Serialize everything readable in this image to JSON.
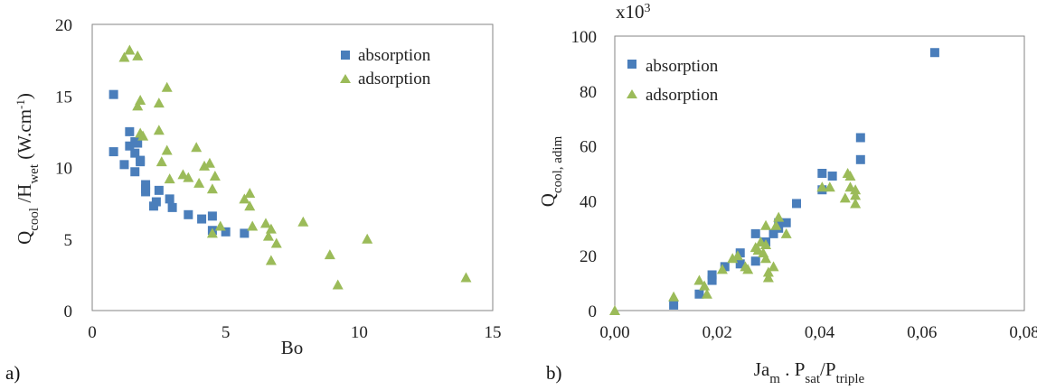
{
  "charts_colors": {
    "absorption": "#4a7ebb",
    "adsorption": "#9bbb59",
    "axis": "#868686"
  },
  "chart_data": [
    {
      "panel_label": "a)",
      "type": "scatter",
      "xlabel": "Bo",
      "ylabel": {
        "main": "Q",
        "sub1": "cool",
        "mid": " /H",
        "sub2": "wet",
        "unit_open": " (W.cm",
        "sup": "-1",
        "unit_close": ")"
      },
      "xlim": [
        0,
        15
      ],
      "ylim": [
        0,
        20
      ],
      "xticks": [
        "0",
        "5",
        "10",
        "15"
      ],
      "yticks": [
        "0",
        "5",
        "10",
        "15",
        "20"
      ],
      "grid": false,
      "legend_position": "top-right",
      "series": [
        {
          "name": "absorption",
          "marker": "square",
          "points": [
            [
              0.8,
              15.1
            ],
            [
              0.8,
              11.1
            ],
            [
              1.2,
              10.2
            ],
            [
              1.4,
              12.5
            ],
            [
              1.4,
              11.5
            ],
            [
              1.6,
              11.8
            ],
            [
              1.6,
              11.0
            ],
            [
              1.6,
              9.7
            ],
            [
              1.7,
              11.7
            ],
            [
              1.8,
              10.4
            ],
            [
              1.8,
              10.5
            ],
            [
              2.0,
              8.8
            ],
            [
              2.0,
              8.5
            ],
            [
              2.0,
              8.3
            ],
            [
              2.3,
              7.3
            ],
            [
              2.4,
              7.6
            ],
            [
              2.5,
              8.4
            ],
            [
              2.9,
              7.8
            ],
            [
              3.0,
              7.2
            ],
            [
              3.6,
              6.7
            ],
            [
              4.1,
              6.4
            ],
            [
              4.5,
              6.6
            ],
            [
              4.5,
              5.6
            ],
            [
              5.0,
              5.5
            ],
            [
              5.7,
              5.4
            ]
          ]
        },
        {
          "name": "adsorption",
          "marker": "triangle",
          "points": [
            [
              1.2,
              17.7
            ],
            [
              1.4,
              18.2
            ],
            [
              1.7,
              17.8
            ],
            [
              1.7,
              14.3
            ],
            [
              1.8,
              14.7
            ],
            [
              1.8,
              12.4
            ],
            [
              1.9,
              12.2
            ],
            [
              2.5,
              14.5
            ],
            [
              2.5,
              12.6
            ],
            [
              2.6,
              10.4
            ],
            [
              2.8,
              15.6
            ],
            [
              2.8,
              11.2
            ],
            [
              2.9,
              9.2
            ],
            [
              3.4,
              9.5
            ],
            [
              3.6,
              9.3
            ],
            [
              3.9,
              11.4
            ],
            [
              4.0,
              8.9
            ],
            [
              4.2,
              10.1
            ],
            [
              4.4,
              10.3
            ],
            [
              4.5,
              8.5
            ],
            [
              4.6,
              9.4
            ],
            [
              4.5,
              5.4
            ],
            [
              4.8,
              5.9
            ],
            [
              5.7,
              7.8
            ],
            [
              5.9,
              8.2
            ],
            [
              5.9,
              7.3
            ],
            [
              6.0,
              5.9
            ],
            [
              6.5,
              6.1
            ],
            [
              6.6,
              5.2
            ],
            [
              6.7,
              5.7
            ],
            [
              6.7,
              3.5
            ],
            [
              6.9,
              4.7
            ],
            [
              7.9,
              6.2
            ],
            [
              8.9,
              3.9
            ],
            [
              9.2,
              1.8
            ],
            [
              10.3,
              5.0
            ],
            [
              14.0,
              2.3
            ]
          ]
        }
      ]
    },
    {
      "panel_label": "b)",
      "type": "scatter",
      "xlabel": {
        "p1": "Ja",
        "s1": "m",
        "p2": " . P",
        "s2": "sat",
        "p3": "/P",
        "s3": "triple"
      },
      "ylabel": {
        "main": "Q",
        "sub1": "cool, adim"
      },
      "scale_label": {
        "base": "x10",
        "sup": "3"
      },
      "xlim": [
        0,
        0.08
      ],
      "ylim": [
        0,
        100
      ],
      "xticks": [
        "0,00",
        "0,02",
        "0,04",
        "0,06",
        "0,08"
      ],
      "yticks": [
        "0",
        "20",
        "40",
        "60",
        "80",
        "100"
      ],
      "grid": false,
      "legend_position": "top-left",
      "series": [
        {
          "name": "absorption",
          "marker": "square",
          "points": [
            [
              0.0115,
              2
            ],
            [
              0.0165,
              6
            ],
            [
              0.019,
              11
            ],
            [
              0.019,
              13
            ],
            [
              0.0215,
              16
            ],
            [
              0.0245,
              21
            ],
            [
              0.0245,
              17
            ],
            [
              0.0275,
              28
            ],
            [
              0.0275,
              18
            ],
            [
              0.0295,
              25
            ],
            [
              0.031,
              28
            ],
            [
              0.032,
              30
            ],
            [
              0.032,
              32
            ],
            [
              0.0335,
              32
            ],
            [
              0.0355,
              39
            ],
            [
              0.0405,
              50
            ],
            [
              0.0405,
              44
            ],
            [
              0.0425,
              49
            ],
            [
              0.048,
              63
            ],
            [
              0.048,
              55
            ],
            [
              0.0625,
              94
            ]
          ]
        },
        {
          "name": "adsorption",
          "marker": "triangle",
          "points": [
            [
              0.0,
              0
            ],
            [
              0.0115,
              5
            ],
            [
              0.0165,
              11
            ],
            [
              0.0175,
              9
            ],
            [
              0.018,
              6
            ],
            [
              0.021,
              15
            ],
            [
              0.023,
              19
            ],
            [
              0.024,
              20
            ],
            [
              0.0255,
              16
            ],
            [
              0.026,
              15
            ],
            [
              0.0275,
              23
            ],
            [
              0.028,
              22
            ],
            [
              0.0285,
              25
            ],
            [
              0.029,
              21
            ],
            [
              0.0295,
              19
            ],
            [
              0.0295,
              24
            ],
            [
              0.0295,
              31
            ],
            [
              0.03,
              12
            ],
            [
              0.03,
              14
            ],
            [
              0.031,
              16
            ],
            [
              0.0315,
              31
            ],
            [
              0.032,
              34
            ],
            [
              0.0335,
              28
            ],
            [
              0.0405,
              45
            ],
            [
              0.042,
              45
            ],
            [
              0.045,
              41
            ],
            [
              0.0455,
              50
            ],
            [
              0.046,
              49
            ],
            [
              0.046,
              45
            ],
            [
              0.047,
              39
            ],
            [
              0.047,
              42
            ],
            [
              0.047,
              44
            ]
          ]
        }
      ]
    }
  ]
}
